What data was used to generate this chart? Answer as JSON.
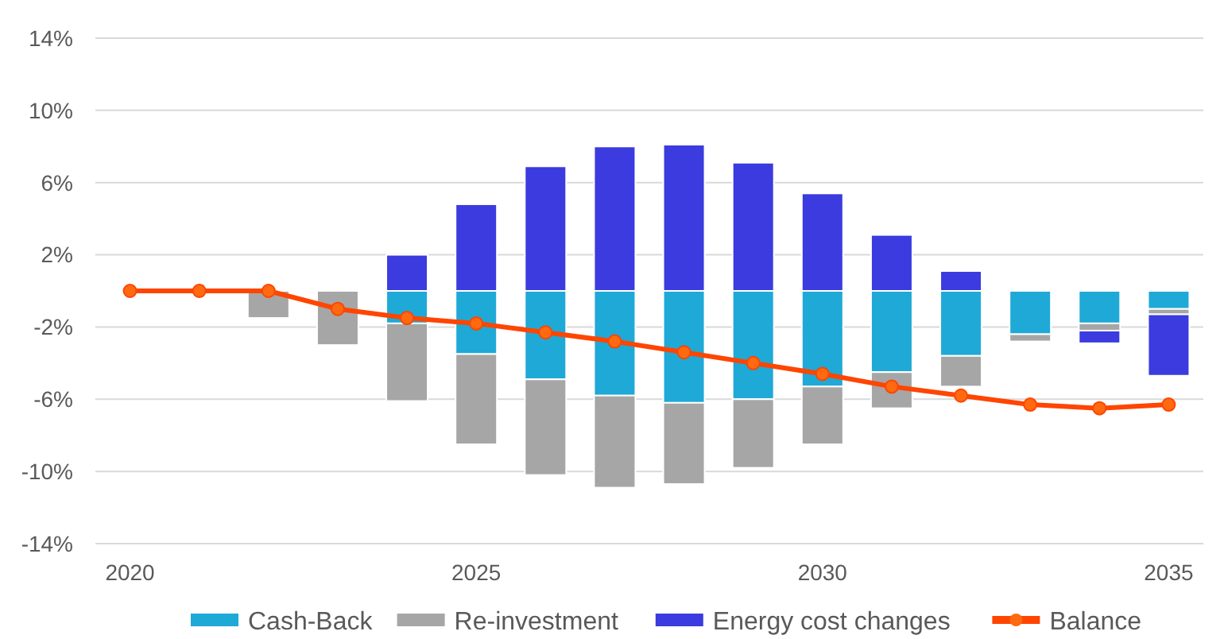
{
  "chart_data": {
    "type": "bar",
    "stacked": true,
    "x": [
      2020,
      2021,
      2022,
      2023,
      2024,
      2025,
      2026,
      2027,
      2028,
      2029,
      2030,
      2031,
      2032,
      2033,
      2034,
      2035
    ],
    "xlim": [
      2019.5,
      2035.5
    ],
    "xticks": [
      2020,
      2025,
      2030,
      2035
    ],
    "ylim": [
      -14,
      14
    ],
    "yticks": [
      {
        "value": -14,
        "label": "-14%"
      },
      {
        "value": -10,
        "label": "-10%"
      },
      {
        "value": -6,
        "label": "-6%"
      },
      {
        "value": -2,
        "label": "-2%"
      },
      {
        "value": 2,
        "label": "2%"
      },
      {
        "value": 6,
        "label": "6%"
      },
      {
        "value": 10,
        "label": "10%"
      },
      {
        "value": 14,
        "label": "14%"
      }
    ],
    "grid": "y",
    "legend": "bottom",
    "marker": "circle",
    "series": [
      {
        "name": "Cash-Back",
        "color": "#1fa9d6",
        "values": [
          null,
          null,
          0,
          0,
          -1.8,
          -3.5,
          -4.9,
          -5.8,
          -6.2,
          -6.0,
          -5.3,
          -4.5,
          -3.6,
          -2.4,
          -1.8,
          -1.0
        ]
      },
      {
        "name": "Re-investment",
        "color": "#a6a6a6",
        "values": [
          null,
          null,
          -1.5,
          -3.0,
          -4.3,
          -5.0,
          -5.3,
          -5.1,
          -4.5,
          -3.8,
          -3.2,
          -2.0,
          -1.7,
          -0.4,
          -0.4,
          -0.3
        ]
      },
      {
        "name": "Energy cost changes",
        "color": "#3b3bdf",
        "values": [
          null,
          null,
          0,
          0,
          2.0,
          4.8,
          6.9,
          8.0,
          8.1,
          7.1,
          5.4,
          3.1,
          1.1,
          0,
          -0.7,
          -3.4
        ]
      },
      {
        "name": "Balance",
        "type": "line",
        "color": "#ff4500",
        "values": [
          0,
          0,
          0,
          -1.0,
          -1.5,
          -1.8,
          -2.3,
          -2.8,
          -3.4,
          -4.0,
          -4.6,
          -5.3,
          -5.8,
          -6.3,
          -6.5,
          -6.3
        ]
      }
    ]
  }
}
